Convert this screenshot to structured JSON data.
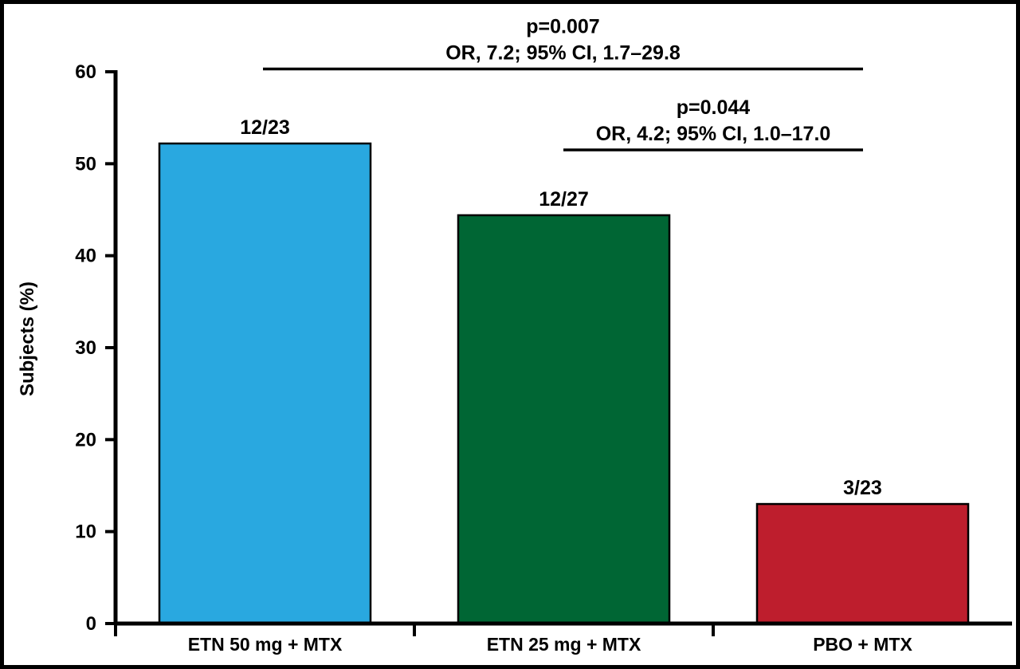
{
  "chart_data": {
    "type": "bar",
    "title": "",
    "xlabel": "",
    "ylabel": "Subjects (%)",
    "ylim": [
      0,
      60
    ],
    "yticks": [
      0,
      10,
      20,
      30,
      40,
      50,
      60
    ],
    "grid": false,
    "categories": [
      "ETN 50 mg + MTX",
      "ETN 25 mg + MTX",
      "PBO + MTX"
    ],
    "values": [
      52.2,
      44.4,
      13.0
    ],
    "bar_labels": [
      "12/23",
      "12/27",
      "3/23"
    ],
    "colors": [
      "#29A8E0",
      "#006634",
      "#BE1E2D"
    ],
    "comparisons": [
      {
        "from": 0,
        "to": 2,
        "y": 60.3,
        "p_text": "p=0.007",
        "or_text": "OR, 7.2; 95% CI, 1.7–29.8"
      },
      {
        "from": 1,
        "to": 2,
        "y": 51.5,
        "p_text": "p=0.044",
        "or_text": "OR, 4.2; 95% CI, 1.0–17.0"
      }
    ]
  }
}
